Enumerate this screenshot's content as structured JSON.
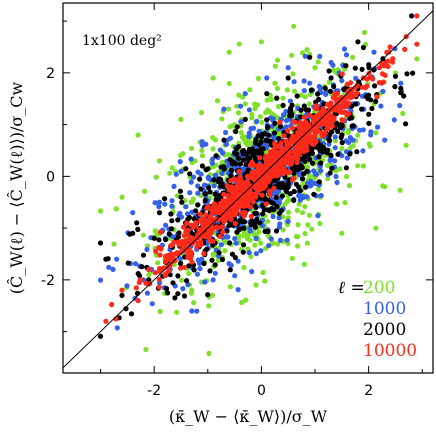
{
  "chart_data": {
    "type": "scatter",
    "annotation": "1x100 deg²",
    "xlabel": "(κ̄_W − ⟨κ̄_W⟩)/σ_W",
    "ylabel": "(Ĉ_W(ℓ) − ⟨Ĉ_W(ℓ)⟩)/σ_Cw",
    "xlim": [
      -3.7,
      3.2
    ],
    "ylim": [
      -3.8,
      3.35
    ],
    "xticks": [
      "-2",
      "0",
      "2"
    ],
    "yticks": [
      "-2",
      "0",
      "2"
    ],
    "reference_line": {
      "from": [
        -3.7,
        -3.7
      ],
      "to": [
        3.2,
        3.2
      ]
    },
    "legend": {
      "prefix": "ℓ =",
      "placement": "bottom-right"
    },
    "series": [
      {
        "name": "200",
        "color": "#7fe02a",
        "slope": 0.55,
        "spread": 0.85,
        "points": [
          [
            -2.6,
            -0.4
          ],
          [
            -2.3,
            0.8
          ],
          [
            -2.1,
            -1.9
          ],
          [
            -1.9,
            0.3
          ],
          [
            -1.7,
            -1.2
          ],
          [
            -1.5,
            1.1
          ],
          [
            -1.3,
            -2.2
          ],
          [
            -1.1,
            0.4
          ],
          [
            -0.9,
            1.9
          ],
          [
            -0.8,
            -1.6
          ],
          [
            -0.6,
            2.4
          ],
          [
            -0.4,
            -0.9
          ],
          [
            -0.3,
            1.4
          ],
          [
            -0.1,
            -2.1
          ],
          [
            0.0,
            2.6
          ],
          [
            0.2,
            -1.3
          ],
          [
            0.3,
            1.7
          ],
          [
            0.5,
            -0.8
          ],
          [
            0.6,
            2.9
          ],
          [
            0.8,
            -1.7
          ],
          [
            1.0,
            2.1
          ],
          [
            1.1,
            -0.4
          ],
          [
            1.3,
            1.6
          ],
          [
            1.5,
            -1.1
          ],
          [
            1.7,
            2.3
          ],
          [
            1.9,
            0.2
          ],
          [
            2.1,
            1.4
          ],
          [
            2.3,
            -0.2
          ],
          [
            2.5,
            2.0
          ],
          [
            2.7,
            0.6
          ]
        ]
      },
      {
        "name": "1000",
        "color": "#3461e8",
        "slope": 0.7,
        "spread": 0.6,
        "points": [
          [
            -2.7,
            -1.6
          ],
          [
            -2.4,
            -0.7
          ],
          [
            -2.2,
            -2.0
          ],
          [
            -1.9,
            -0.5
          ],
          [
            -1.7,
            -1.8
          ],
          [
            -1.5,
            0.1
          ],
          [
            -1.3,
            -1.3
          ],
          [
            -1.1,
            0.6
          ],
          [
            -0.9,
            -2.0
          ],
          [
            -0.7,
            1.3
          ],
          [
            -0.5,
            -0.9
          ],
          [
            -0.3,
            1.6
          ],
          [
            -0.1,
            -1.2
          ],
          [
            0.1,
            1.9
          ],
          [
            0.3,
            -0.6
          ],
          [
            0.5,
            2.1
          ],
          [
            0.7,
            -0.3
          ],
          [
            0.9,
            1.8
          ],
          [
            1.1,
            0.2
          ],
          [
            1.3,
            2.2
          ],
          [
            1.5,
            0.4
          ],
          [
            1.7,
            1.4
          ],
          [
            1.9,
            0.9
          ],
          [
            2.1,
            2.4
          ],
          [
            2.3,
            0.7
          ],
          [
            2.6,
            1.8
          ]
        ]
      },
      {
        "name": "2000",
        "color": "#000000",
        "slope": 0.78,
        "spread": 0.5,
        "points": [
          [
            -2.9,
            -1.6
          ],
          [
            -2.6,
            -2.3
          ],
          [
            -2.4,
            -1.1
          ],
          [
            -2.1,
            -2.0
          ],
          [
            -1.9,
            -0.7
          ],
          [
            -1.7,
            -1.9
          ],
          [
            -1.5,
            -0.4
          ],
          [
            -1.3,
            -1.5
          ],
          [
            -1.1,
            0.2
          ],
          [
            -0.9,
            -1.3
          ],
          [
            -0.7,
            0.7
          ],
          [
            -0.5,
            -0.9
          ],
          [
            -0.3,
            1.1
          ],
          [
            -0.1,
            -0.6
          ],
          [
            0.1,
            1.6
          ],
          [
            0.3,
            -0.2
          ],
          [
            0.5,
            1.9
          ],
          [
            0.7,
            0.2
          ],
          [
            0.9,
            2.3
          ],
          [
            1.1,
            0.6
          ],
          [
            1.3,
            1.9
          ],
          [
            1.5,
            0.8
          ],
          [
            1.8,
            2.6
          ],
          [
            2.0,
            1.2
          ],
          [
            2.3,
            2.2
          ],
          [
            2.6,
            1.7
          ],
          [
            2.8,
            3.1
          ]
        ]
      },
      {
        "name": "10000",
        "color": "#ff2a1a",
        "slope": 0.95,
        "spread": 0.2,
        "points": [
          [
            -2.9,
            -2.8
          ],
          [
            -2.6,
            -2.2
          ],
          [
            -2.3,
            -2.4
          ],
          [
            -2.1,
            -1.8
          ],
          [
            -1.8,
            -1.9
          ],
          [
            -1.6,
            -1.5
          ],
          [
            -1.3,
            -1.2
          ],
          [
            -1.1,
            -1.1
          ],
          [
            -0.8,
            -0.6
          ],
          [
            -0.6,
            -0.7
          ],
          [
            -0.3,
            -0.2
          ],
          [
            -0.1,
            0.0
          ],
          [
            0.2,
            0.3
          ],
          [
            0.4,
            0.3
          ],
          [
            0.7,
            0.8
          ],
          [
            0.9,
            0.7
          ],
          [
            1.2,
            1.2
          ],
          [
            1.4,
            1.5
          ],
          [
            1.7,
            1.6
          ],
          [
            1.9,
            1.9
          ],
          [
            2.2,
            2.1
          ],
          [
            2.4,
            2.5
          ],
          [
            2.7,
            2.7
          ],
          [
            2.9,
            3.1
          ]
        ]
      }
    ]
  }
}
